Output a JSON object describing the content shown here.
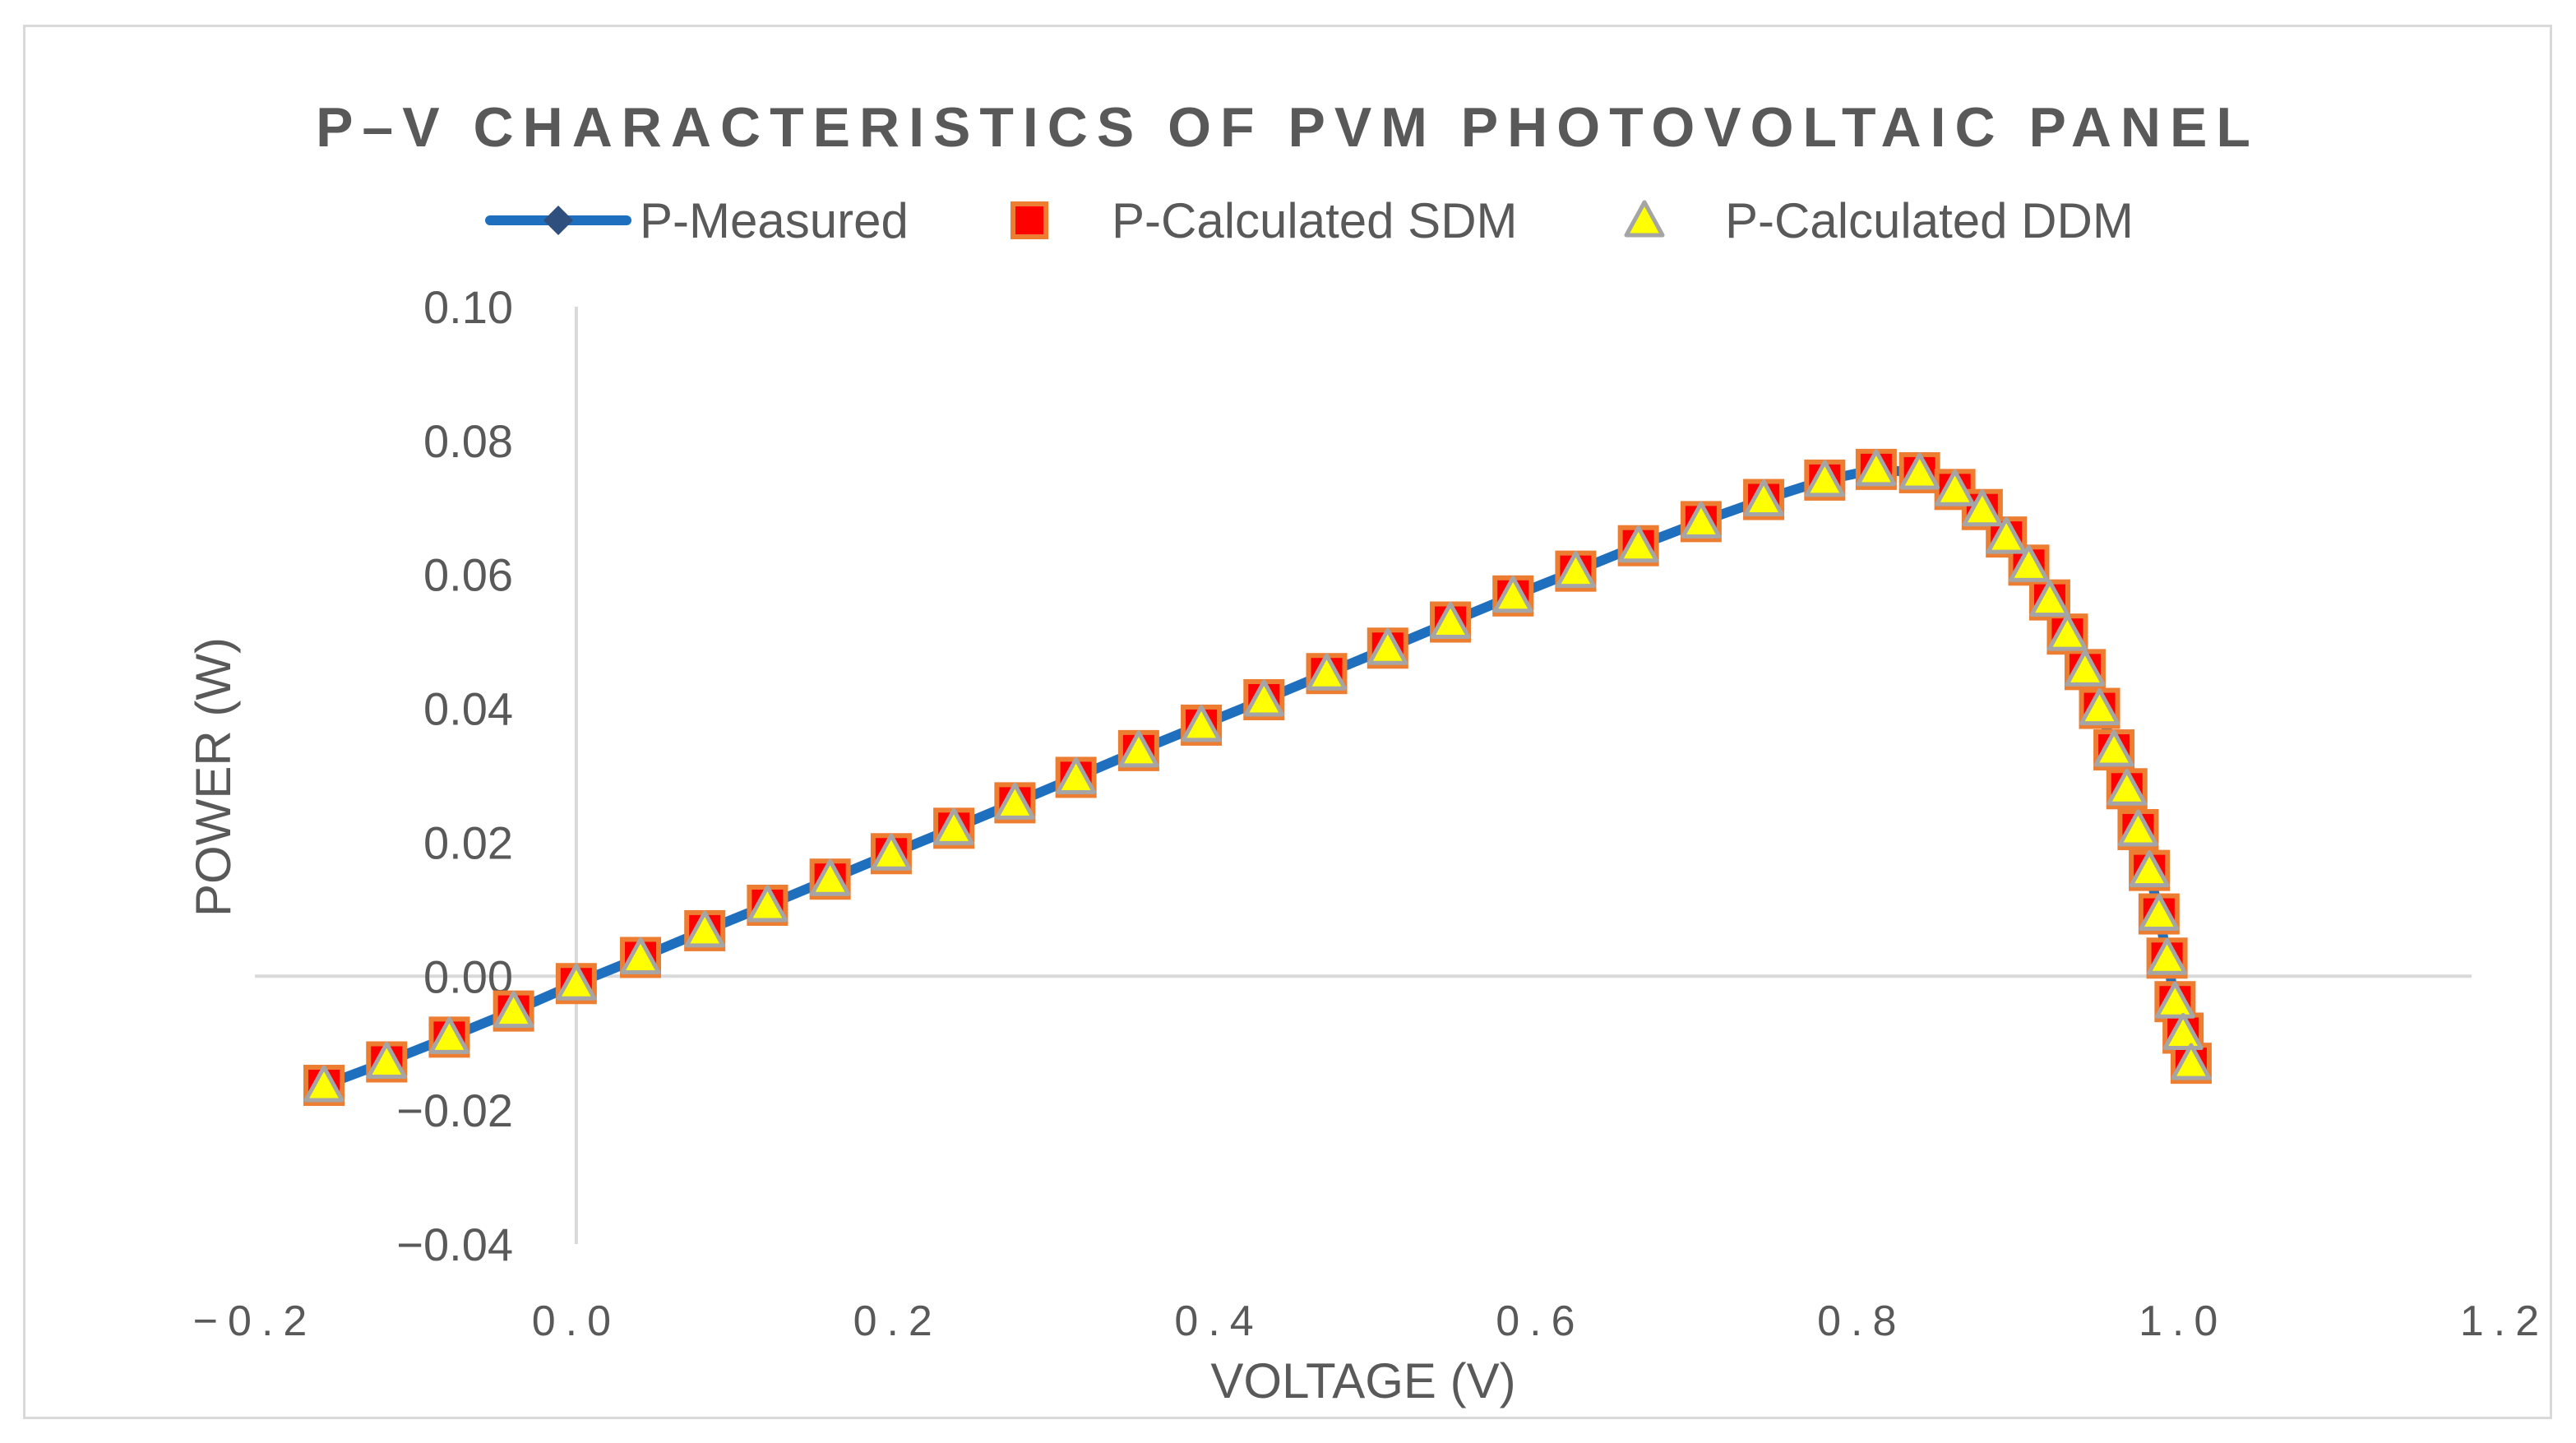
{
  "chart_data": {
    "type": "scatter",
    "title": "P–V CHARACTERISTICS OF PVM PHOTOVOLTAIC PANEL",
    "xlabel": "VOLTAGE (V)",
    "ylabel": "POWER (W)",
    "xlim": [
      -0.2,
      1.2
    ],
    "ylim": [
      -0.04,
      0.1
    ],
    "x_ticks": [
      -0.2,
      0.0,
      0.2,
      0.4,
      0.6,
      0.8,
      1.0,
      1.2
    ],
    "x_tick_labels": [
      "−0.2",
      "0.0",
      "0.2",
      "0.4",
      "0.6",
      "0.8",
      "1.0",
      "1.2"
    ],
    "y_ticks": [
      -0.04,
      -0.02,
      0.0,
      0.02,
      0.04,
      0.06,
      0.08,
      0.1
    ],
    "y_tick_labels": [
      "−0.04",
      "−0.02",
      "0.00",
      "0.02",
      "0.04",
      "0.06",
      "0.08",
      "0.10"
    ],
    "grid": false,
    "legend_position": "top",
    "x": [
      -0.157,
      -0.118,
      -0.079,
      -0.039,
      0.0,
      0.04,
      0.08,
      0.119,
      0.158,
      0.196,
      0.235,
      0.273,
      0.311,
      0.35,
      0.389,
      0.428,
      0.467,
      0.505,
      0.544,
      0.583,
      0.622,
      0.661,
      0.7,
      0.739,
      0.777,
      0.809,
      0.836,
      0.858,
      0.875,
      0.89,
      0.904,
      0.917,
      0.928,
      0.939,
      0.948,
      0.957,
      0.965,
      0.972,
      0.979,
      0.985,
      0.99,
      0.995,
      1.0,
      1.005
    ],
    "series": [
      {
        "name": "P-Measured",
        "color": "#1f6fbf",
        "marker": "diamond",
        "marker_color": "#2f4f7f",
        "values": [
          -0.0163,
          -0.0128,
          -0.0091,
          -0.0052,
          -0.0011,
          0.0028,
          0.0068,
          0.0106,
          0.0145,
          0.0183,
          0.0221,
          0.0259,
          0.0297,
          0.0337,
          0.0375,
          0.0413,
          0.0452,
          0.049,
          0.0529,
          0.0568,
          0.0605,
          0.0643,
          0.0679,
          0.0712,
          0.0741,
          0.0757,
          0.0752,
          0.0727,
          0.0697,
          0.0656,
          0.0614,
          0.0562,
          0.0511,
          0.0458,
          0.04,
          0.0338,
          0.028,
          0.0219,
          0.0158,
          0.0093,
          0.0027,
          -0.0038,
          -0.0085,
          -0.013
        ]
      },
      {
        "name": "P-Calculated SDM",
        "color": "#ff0000",
        "marker": "square",
        "border_color": "#ed7d31",
        "values": [
          -0.0163,
          -0.0128,
          -0.0091,
          -0.0052,
          -0.0011,
          0.0028,
          0.0068,
          0.0106,
          0.0145,
          0.0183,
          0.0221,
          0.0259,
          0.0297,
          0.0337,
          0.0375,
          0.0413,
          0.0452,
          0.049,
          0.0529,
          0.0568,
          0.0605,
          0.0643,
          0.0679,
          0.0712,
          0.0741,
          0.0757,
          0.0752,
          0.0727,
          0.0697,
          0.0656,
          0.0614,
          0.0562,
          0.0511,
          0.0458,
          0.04,
          0.0338,
          0.028,
          0.0219,
          0.0158,
          0.0093,
          0.0027,
          -0.0038,
          -0.0085,
          -0.013
        ]
      },
      {
        "name": "P-Calculated DDM",
        "color": "#ffff00",
        "marker": "triangle",
        "border_color": "#a5a5a5",
        "values": [
          -0.0163,
          -0.0128,
          -0.0091,
          -0.0052,
          -0.0011,
          0.0028,
          0.0068,
          0.0106,
          0.0145,
          0.0183,
          0.0221,
          0.0259,
          0.0297,
          0.0337,
          0.0375,
          0.0413,
          0.0452,
          0.049,
          0.0529,
          0.0568,
          0.0605,
          0.0643,
          0.0679,
          0.0712,
          0.0741,
          0.0757,
          0.0752,
          0.0727,
          0.0697,
          0.0656,
          0.0614,
          0.0562,
          0.0511,
          0.0458,
          0.04,
          0.0338,
          0.028,
          0.0219,
          0.0158,
          0.0093,
          0.0027,
          -0.0038,
          -0.0085,
          -0.013
        ]
      }
    ]
  },
  "colors": {
    "text": "#595959",
    "axis": "#d9d9d9",
    "frame": "#d9d9d9"
  }
}
